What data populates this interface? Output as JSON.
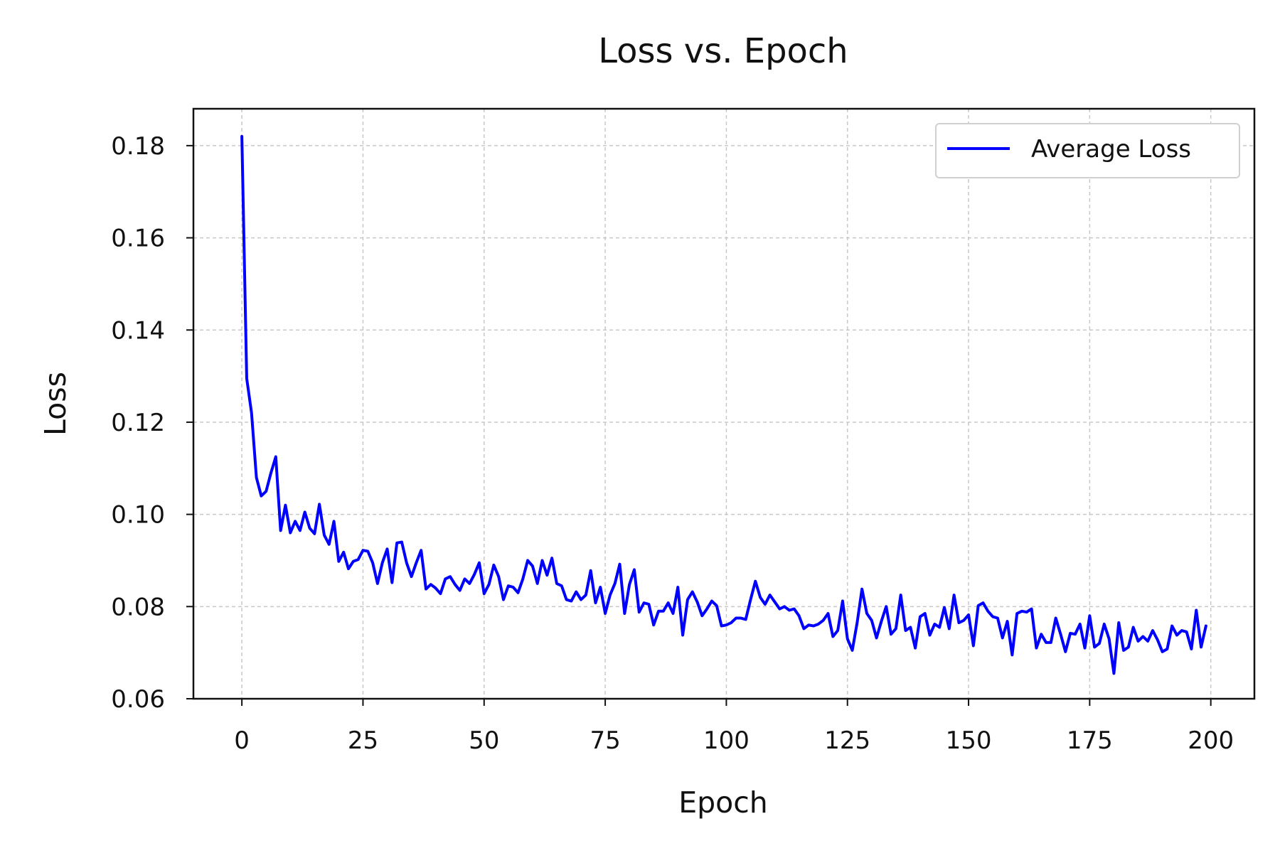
{
  "chart_data": {
    "type": "line",
    "title": "Loss vs. Epoch",
    "xlabel": "Epoch",
    "ylabel": "Loss",
    "xlim": [
      -10,
      209
    ],
    "ylim": [
      0.06,
      0.188
    ],
    "xticks": [
      0,
      25,
      50,
      75,
      100,
      125,
      150,
      175,
      200
    ],
    "yticks": [
      0.06,
      0.08,
      0.1,
      0.12,
      0.14,
      0.16,
      0.18
    ],
    "xtick_labels": [
      "0",
      "25",
      "50",
      "75",
      "100",
      "125",
      "150",
      "175",
      "200"
    ],
    "ytick_labels": [
      "0.06",
      "0.08",
      "0.10",
      "0.12",
      "0.14",
      "0.16",
      "0.18"
    ],
    "grid": true,
    "legend_position": "top-right",
    "series": [
      {
        "name": "Average Loss",
        "color": "#0000ff",
        "x": [
          0,
          1,
          2,
          3,
          4,
          5,
          6,
          7,
          8,
          9,
          10,
          11,
          12,
          13,
          14,
          15,
          16,
          17,
          18,
          19,
          20,
          21,
          22,
          23,
          24,
          25,
          26,
          27,
          28,
          29,
          30,
          31,
          32,
          33,
          34,
          35,
          36,
          37,
          38,
          39,
          40,
          41,
          42,
          43,
          44,
          45,
          46,
          47,
          48,
          49,
          50,
          51,
          52,
          53,
          54,
          55,
          56,
          57,
          58,
          59,
          60,
          61,
          62,
          63,
          64,
          65,
          66,
          67,
          68,
          69,
          70,
          71,
          72,
          73,
          74,
          75,
          76,
          77,
          78,
          79,
          80,
          81,
          82,
          83,
          84,
          85,
          86,
          87,
          88,
          89,
          90,
          91,
          92,
          93,
          94,
          95,
          96,
          97,
          98,
          99,
          100,
          101,
          102,
          103,
          104,
          105,
          106,
          107,
          108,
          109,
          110,
          111,
          112,
          113,
          114,
          115,
          116,
          117,
          118,
          119,
          120,
          121,
          122,
          123,
          124,
          125,
          126,
          127,
          128,
          129,
          130,
          131,
          132,
          133,
          134,
          135,
          136,
          137,
          138,
          139,
          140,
          141,
          142,
          143,
          144,
          145,
          146,
          147,
          148,
          149,
          150,
          151,
          152,
          153,
          154,
          155,
          156,
          157,
          158,
          159,
          160,
          161,
          162,
          163,
          164,
          165,
          166,
          167,
          168,
          169,
          170,
          171,
          172,
          173,
          174,
          175,
          176,
          177,
          178,
          179,
          180,
          181,
          182,
          183,
          184,
          185,
          186,
          187,
          188,
          189,
          190,
          191,
          192,
          193,
          194,
          195,
          196,
          197,
          198,
          199
        ],
        "values": [
          0.182,
          0.1295,
          0.122,
          0.108,
          0.104,
          0.105,
          0.109,
          0.1125,
          0.0965,
          0.102,
          0.096,
          0.0985,
          0.0965,
          0.1005,
          0.097,
          0.0958,
          0.1022,
          0.0955,
          0.0935,
          0.0985,
          0.0898,
          0.0918,
          0.0882,
          0.0898,
          0.0902,
          0.0922,
          0.092,
          0.0895,
          0.085,
          0.0895,
          0.0925,
          0.0852,
          0.0938,
          0.094,
          0.0895,
          0.0865,
          0.0895,
          0.0922,
          0.0838,
          0.0848,
          0.084,
          0.0828,
          0.086,
          0.0865,
          0.0848,
          0.0835,
          0.086,
          0.085,
          0.087,
          0.0895,
          0.0828,
          0.0848,
          0.089,
          0.0865,
          0.0815,
          0.0845,
          0.0842,
          0.083,
          0.086,
          0.09,
          0.0888,
          0.085,
          0.09,
          0.0868,
          0.0905,
          0.085,
          0.0845,
          0.0815,
          0.0812,
          0.0832,
          0.0815,
          0.0825,
          0.0878,
          0.0808,
          0.0842,
          0.0785,
          0.0825,
          0.085,
          0.0892,
          0.0785,
          0.0848,
          0.088,
          0.0788,
          0.0808,
          0.0805,
          0.076,
          0.079,
          0.079,
          0.0808,
          0.0785,
          0.0842,
          0.0738,
          0.0815,
          0.0832,
          0.081,
          0.078,
          0.0795,
          0.0812,
          0.0802,
          0.0758,
          0.076,
          0.0765,
          0.0775,
          0.0775,
          0.0772,
          0.0815,
          0.0855,
          0.082,
          0.0805,
          0.0825,
          0.081,
          0.0795,
          0.08,
          0.0792,
          0.0795,
          0.078,
          0.0752,
          0.076,
          0.0758,
          0.0762,
          0.077,
          0.0785,
          0.0735,
          0.0748,
          0.0812,
          0.073,
          0.0705,
          0.0765,
          0.0838,
          0.0785,
          0.077,
          0.0732,
          0.0768,
          0.08,
          0.074,
          0.0752,
          0.0825,
          0.0748,
          0.0755,
          0.071,
          0.0778,
          0.0785,
          0.0738,
          0.0762,
          0.0755,
          0.0798,
          0.0752,
          0.0825,
          0.0765,
          0.077,
          0.0782,
          0.0715,
          0.0802,
          0.0808,
          0.079,
          0.0778,
          0.0775,
          0.0732,
          0.0768,
          0.0695,
          0.0785,
          0.079,
          0.0788,
          0.0795,
          0.071,
          0.074,
          0.0722,
          0.0722,
          0.0775,
          0.074,
          0.0702,
          0.0742,
          0.074,
          0.0762,
          0.071,
          0.078,
          0.0712,
          0.072,
          0.0762,
          0.073,
          0.0655,
          0.0765,
          0.0705,
          0.0712,
          0.0755,
          0.0725,
          0.0735,
          0.0725,
          0.0748,
          0.0728,
          0.0702,
          0.0708,
          0.0758,
          0.0738,
          0.0748,
          0.0745,
          0.0708,
          0.0792,
          0.0712,
          0.0758
        ]
      }
    ]
  }
}
